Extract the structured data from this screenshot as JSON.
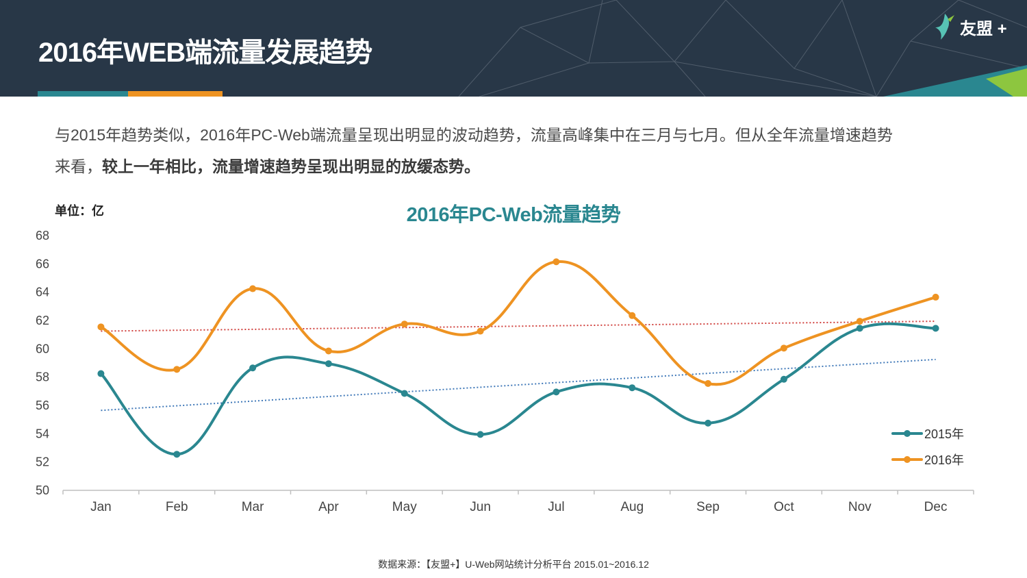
{
  "header": {
    "title": "2016年WEB端流量发展趋势",
    "logo_text": "友盟 +",
    "accent_colors": [
      "#2a8790",
      "#ee9322"
    ]
  },
  "description": {
    "line1": "与2015年趋势类似，2016年PC-Web端流量呈现出明显的波动趋势，流量高峰集中在三月与七月。但从全年流量增速趋势",
    "line2_plain": "来看，",
    "line2_bold": "较上一年相比，流量增速趋势呈现出明显的放缓态势。"
  },
  "unit_label": "单位：亿",
  "source_note": "数据来源：【友盟+】U-Web网站统计分析平台 2015.01~2016.12",
  "chart_data": {
    "type": "line",
    "title": "2016年PC-Web流量趋势",
    "categories": [
      "Jan",
      "Feb",
      "Mar",
      "Apr",
      "May",
      "Jun",
      "Jul",
      "Aug",
      "Sep",
      "Oct",
      "Nov",
      "Dec"
    ],
    "ylim": [
      50,
      68
    ],
    "yticks": [
      50,
      52,
      54,
      56,
      58,
      60,
      62,
      64,
      66,
      68
    ],
    "grid": false,
    "legend_position": "bottom-right",
    "series": [
      {
        "name": "2015年",
        "color": "#2a8790",
        "trend_color": "#3f78b8",
        "values": [
          58.2,
          52.5,
          58.6,
          58.9,
          56.8,
          53.9,
          56.9,
          57.2,
          54.7,
          57.8,
          61.4,
          61.4
        ],
        "trend": [
          55.6,
          59.2
        ]
      },
      {
        "name": "2016年",
        "color": "#ee9322",
        "trend_color": "#d0403d",
        "values": [
          61.5,
          58.5,
          64.2,
          59.8,
          61.7,
          61.2,
          66.1,
          62.3,
          57.5,
          60.0,
          61.9,
          63.6
        ],
        "trend": [
          61.2,
          61.9
        ]
      }
    ]
  }
}
